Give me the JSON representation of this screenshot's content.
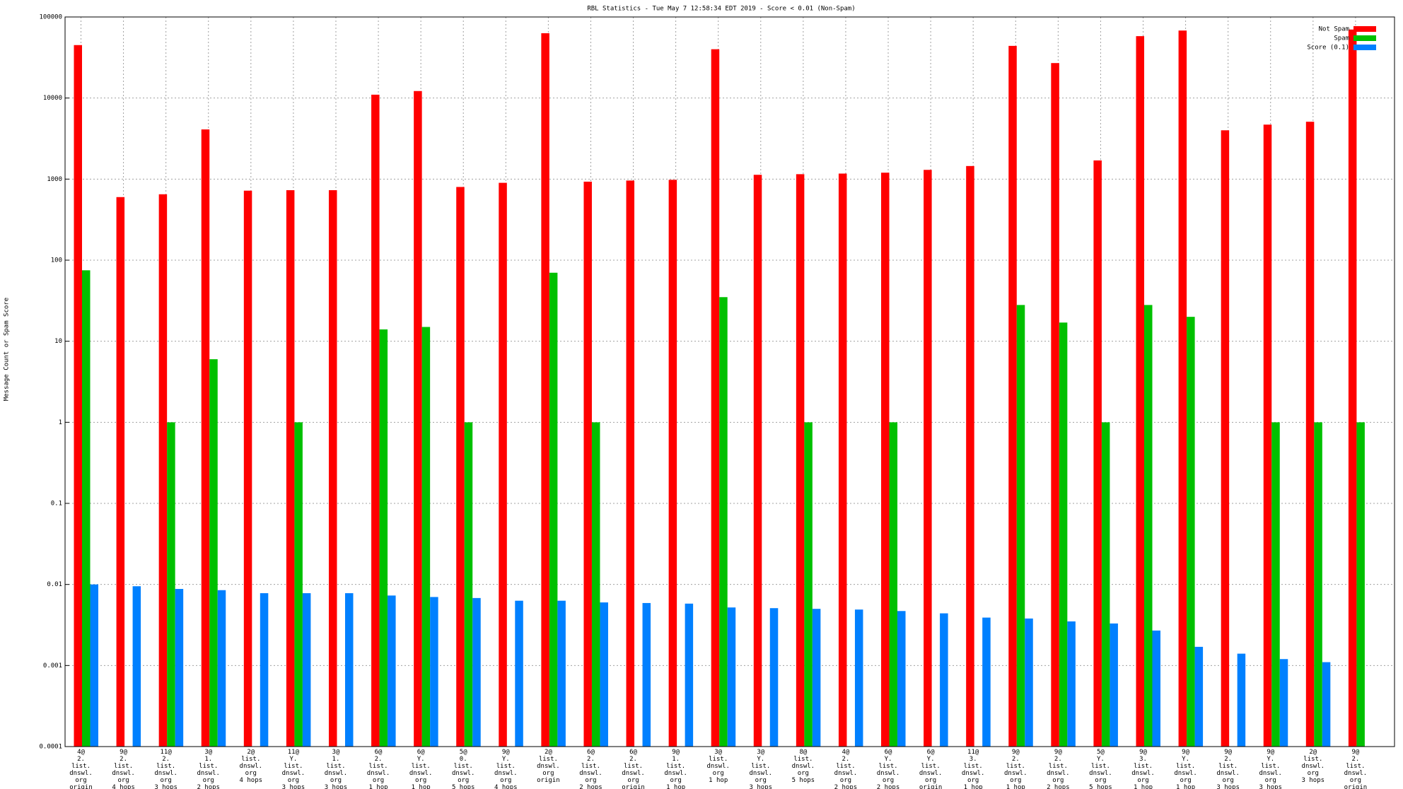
{
  "chart_data": {
    "type": "bar",
    "title": "RBL Statistics - Tue May  7 12:58:34 EDT 2019 - Score < 0.01 (Non-Spam)",
    "y_label": "Message Count or Spam Score",
    "log_scale": true,
    "grid": true,
    "legend": "top-right",
    "ylim": [
      0.0001,
      100000
    ],
    "yticks": [
      0.0001,
      0.001,
      0.01,
      0.1,
      1,
      10,
      100,
      1000,
      10000,
      100000
    ],
    "categories": [
      "4@\n2.\nlist.\ndnswl.\norg\norigin",
      "9@\n2.\nlist.\ndnswl.\norg\n4 hops",
      "11@\n2.\nlist.\ndnswl.\norg\n3 hops",
      "3@\n1.\nlist.\ndnswl.\norg\n2 hops",
      "2@\nlist.\ndnswl.\norg\n4 hops",
      "11@\nY.\nlist.\ndnswl.\norg\n3 hops",
      "3@\n1.\nlist.\ndnswl.\norg\n3 hops",
      "6@\n2.\nlist.\ndnswl.\norg\n1 hop",
      "6@\nY.\nlist.\ndnswl.\norg\n1 hop",
      "5@\n0.\nlist.\ndnswl.\norg\n5 hops",
      "9@\nY.\nlist.\ndnswl.\norg\n4 hops",
      "2@\nlist.\ndnswl.\norg\norigin",
      "6@\n2.\nlist.\ndnswl.\norg\n2 hops",
      "6@\n2.\nlist.\ndnswl.\norg\norigin",
      "9@\n1.\nlist.\ndnswl.\norg\n1 hop",
      "3@\nlist.\ndnswl.\norg\n1 hop",
      "3@\nY.\nlist.\ndnswl.\norg\n3 hops",
      "8@\nlist.\ndnswl.\norg\n5 hops",
      "4@\n2.\nlist.\ndnswl.\norg\n2 hops",
      "6@\nY.\nlist.\ndnswl.\norg\n2 hops",
      "6@\nY.\nlist.\ndnswl.\norg\norigin",
      "11@\n3.\nlist.\ndnswl.\norg\n1 hop",
      "9@\n2.\nlist.\ndnswl.\norg\n1 hop",
      "9@\n2.\nlist.\ndnswl.\norg\n2 hops",
      "5@\nY.\nlist.\ndnswl.\norg\n5 hops",
      "9@\n3.\nlist.\ndnswl.\norg\n1 hop",
      "9@\nY.\nlist.\ndnswl.\norg\n1 hop",
      "9@\n2.\nlist.\ndnswl.\norg\n3 hops",
      "9@\nY.\nlist.\ndnswl.\norg\n3 hops",
      "2@\nlist.\ndnswl.\norg\n3 hops",
      "9@\n2.\nlist.\ndnswl.\norg\norigin"
    ],
    "series": [
      {
        "name": "Not Spam",
        "color": "#ff0000",
        "values": [
          45000,
          600,
          650,
          4100,
          720,
          730,
          730,
          11000,
          12200,
          800,
          900,
          63000,
          930,
          960,
          980,
          40000,
          1130,
          1150,
          1170,
          1200,
          1300,
          1450,
          44000,
          27000,
          1700,
          58000,
          68000,
          4000,
          4700,
          5100,
          70000
        ]
      },
      {
        "name": "Spam",
        "color": "#00c000",
        "values": [
          75,
          null,
          1,
          6,
          null,
          1,
          null,
          14,
          15,
          1,
          null,
          70,
          1,
          null,
          null,
          35,
          null,
          1,
          null,
          1,
          null,
          null,
          28,
          17,
          1,
          28,
          20,
          null,
          1,
          1,
          1
        ]
      },
      {
        "name": "Score (0.1)",
        "color": "#0080ff",
        "values": [
          0.01,
          0.0095,
          0.0088,
          0.0085,
          0.0078,
          0.0078,
          0.0078,
          0.0073,
          0.007,
          0.0068,
          0.0063,
          0.0063,
          0.006,
          0.0059,
          0.0058,
          0.0052,
          0.0051,
          0.005,
          0.0049,
          0.0047,
          0.0044,
          0.0039,
          0.0038,
          0.0035,
          0.0033,
          0.0027,
          0.0017,
          0.0014,
          0.0012,
          0.0011,
          null
        ]
      }
    ]
  }
}
